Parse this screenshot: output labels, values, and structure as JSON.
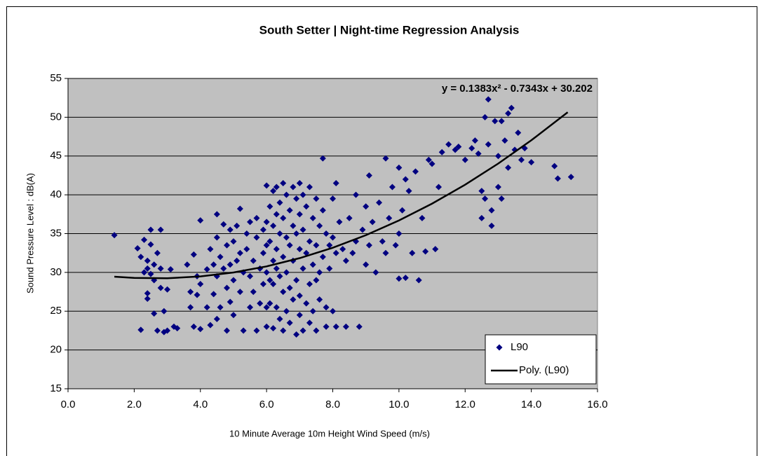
{
  "chart_data": {
    "type": "scatter",
    "title": "South Setter | Night-time Regression Analysis",
    "xlabel": "10 Minute Average 10m Height Wind Speed (m/s)",
    "ylabel": "Sound Pressure Level : dB(A)",
    "annotation": "y = 0.1383x² - 0.7343x + 30.202",
    "xlim": [
      0,
      16
    ],
    "ylim": [
      15,
      55
    ],
    "xticks": [
      {
        "value": 0,
        "label": "0.0"
      },
      {
        "value": 2,
        "label": "2.0"
      },
      {
        "value": 4,
        "label": "4.0"
      },
      {
        "value": 6,
        "label": "6.0"
      },
      {
        "value": 8,
        "label": "8.0"
      },
      {
        "value": 10,
        "label": "10.0"
      },
      {
        "value": 12,
        "label": "12.0"
      },
      {
        "value": 14,
        "label": "14.0"
      },
      {
        "value": 16,
        "label": "16.0"
      }
    ],
    "yticks": [
      15,
      20,
      25,
      30,
      35,
      40,
      45,
      50,
      55
    ],
    "grid": true,
    "legend": "lower right",
    "series": [
      {
        "name": "L90",
        "color": "#000080",
        "x": [
          1.4,
          2.1,
          2.2,
          2.2,
          2.3,
          2.4,
          2.4,
          2.4,
          2.4,
          2.5,
          2.5,
          2.5,
          2.6,
          2.6,
          2.7,
          2.7,
          2.8,
          2.8,
          2.8,
          2.9,
          2.9,
          3.0,
          3.0,
          3.1,
          3.2,
          2.6,
          2.3,
          3.3,
          3.6,
          3.7,
          3.7,
          3.8,
          3.8,
          3.9,
          3.9,
          4.0,
          4.0,
          4.0,
          4.2,
          4.2,
          4.3,
          4.3,
          4.4,
          4.4,
          4.5,
          4.5,
          4.5,
          4.5,
          4.6,
          4.6,
          4.7,
          4.7,
          4.8,
          4.8,
          4.8,
          4.9,
          4.9,
          4.9,
          5.0,
          5.0,
          5.0,
          5.1,
          5.1,
          5.2,
          5.2,
          5.2,
          5.3,
          5.3,
          5.4,
          5.4,
          5.5,
          5.5,
          5.5,
          5.6,
          5.6,
          5.7,
          5.7,
          5.7,
          5.8,
          5.8,
          5.9,
          5.9,
          5.9,
          6.0,
          6.0,
          6.0,
          6.0,
          6.0,
          6.0,
          6.1,
          6.1,
          6.1,
          6.1,
          6.2,
          6.2,
          6.2,
          6.2,
          6.2,
          6.3,
          6.3,
          6.3,
          6.3,
          6.3,
          6.4,
          6.4,
          6.4,
          6.4,
          6.5,
          6.5,
          6.5,
          6.5,
          6.5,
          6.6,
          6.6,
          6.6,
          6.6,
          6.7,
          6.7,
          6.7,
          6.7,
          6.8,
          6.8,
          6.8,
          6.8,
          6.9,
          6.9,
          6.9,
          6.9,
          7.0,
          7.0,
          7.0,
          7.0,
          7.0,
          7.1,
          7.1,
          7.1,
          7.1,
          7.2,
          7.2,
          7.2,
          7.3,
          7.3,
          7.3,
          7.3,
          7.4,
          7.4,
          7.4,
          7.5,
          7.5,
          7.5,
          7.5,
          7.6,
          7.6,
          7.6,
          7.7,
          7.7,
          7.7,
          7.8,
          7.8,
          7.8,
          7.9,
          7.9,
          8.0,
          8.0,
          8.0,
          8.1,
          8.1,
          8.1,
          8.2,
          8.3,
          8.4,
          8.4,
          8.5,
          8.6,
          8.7,
          8.7,
          8.8,
          8.9,
          9.0,
          9.0,
          9.1,
          9.1,
          9.2,
          9.3,
          9.4,
          9.5,
          9.6,
          9.6,
          9.7,
          9.8,
          9.9,
          10.0,
          10.0,
          10.0,
          10.1,
          10.2,
          10.2,
          10.3,
          10.4,
          10.5,
          10.6,
          10.7,
          10.8,
          10.9,
          11.0,
          11.1,
          11.2,
          11.3,
          11.5,
          11.7,
          11.8,
          12.0,
          12.2,
          12.3,
          12.4,
          12.5,
          12.5,
          12.6,
          12.6,
          12.7,
          12.7,
          12.8,
          12.8,
          12.9,
          13.0,
          13.0,
          13.1,
          13.1,
          13.2,
          13.3,
          13.3,
          13.4,
          13.5,
          13.6,
          13.7,
          13.8,
          14.0,
          14.7,
          14.8,
          15.2
        ],
        "values": [
          34.8,
          33.1,
          32.0,
          22.6,
          34.2,
          31.5,
          30.5,
          27.3,
          26.6,
          35.5,
          33.6,
          29.8,
          31.0,
          24.7,
          32.5,
          22.5,
          35.5,
          30.5,
          28.0,
          25.0,
          22.3,
          27.8,
          22.5,
          30.4,
          23.0,
          29.0,
          30.0,
          22.8,
          31.0,
          27.5,
          25.5,
          32.3,
          23.0,
          29.5,
          27.1,
          36.7,
          28.5,
          22.7,
          30.4,
          25.5,
          33.0,
          23.2,
          31.0,
          27.2,
          37.5,
          34.5,
          29.5,
          24.0,
          32.0,
          25.5,
          36.2,
          30.5,
          33.5,
          28.0,
          22.5,
          35.5,
          31.0,
          26.2,
          34.0,
          29.0,
          24.5,
          36.0,
          31.5,
          38.2,
          32.5,
          27.5,
          30.0,
          22.5,
          35.0,
          33.0,
          36.5,
          29.5,
          25.5,
          31.5,
          27.5,
          37.0,
          34.5,
          22.5,
          30.5,
          26.0,
          35.5,
          32.5,
          28.5,
          41.2,
          36.5,
          33.5,
          30.0,
          25.5,
          23.0,
          38.5,
          34.0,
          29.0,
          26.0,
          40.5,
          36.0,
          31.5,
          28.5,
          22.8,
          41.0,
          37.5,
          33.0,
          30.5,
          25.5,
          39.0,
          35.0,
          29.5,
          24.0,
          41.5,
          37.0,
          32.0,
          27.5,
          22.5,
          40.0,
          34.5,
          30.0,
          25.0,
          38.0,
          33.5,
          28.0,
          23.5,
          41.0,
          36.0,
          31.5,
          26.5,
          39.5,
          35.0,
          29.0,
          22.0,
          41.5,
          37.5,
          33.0,
          27.0,
          24.5,
          40.0,
          35.5,
          30.5,
          22.5,
          38.5,
          32.5,
          26.0,
          41.0,
          34.0,
          28.5,
          23.5,
          37.0,
          31.0,
          25.0,
          39.5,
          33.5,
          29.0,
          22.5,
          36.0,
          30.0,
          26.5,
          44.7,
          38.0,
          32.0,
          35.0,
          25.5,
          23.0,
          33.5,
          30.5,
          39.5,
          34.5,
          25.0,
          41.5,
          32.5,
          23.0,
          36.5,
          33.0,
          31.5,
          23.0,
          37.0,
          32.5,
          40.0,
          34.0,
          23.0,
          35.5,
          38.5,
          31.0,
          42.5,
          33.5,
          36.5,
          30.0,
          39.0,
          34.0,
          44.7,
          32.5,
          37.0,
          41.0,
          33.5,
          43.5,
          35.0,
          29.2,
          38.0,
          42.0,
          29.3,
          40.5,
          32.5,
          43.0,
          29.0,
          37.0,
          32.7,
          44.5,
          44.0,
          33.0,
          41.0,
          45.5,
          46.5,
          45.8,
          46.2,
          44.5,
          46.0,
          47.0,
          45.3,
          40.5,
          37.0,
          50.0,
          39.5,
          52.3,
          46.5,
          38.0,
          36.0,
          49.5,
          41.0,
          45.0,
          49.5,
          39.5,
          47.0,
          50.5,
          43.5,
          51.2,
          45.8,
          48.0,
          44.5,
          46.0,
          44.2,
          43.7,
          42.1,
          42.3
        ]
      },
      {
        "name": "Poly. (L90)",
        "type": "line",
        "color": "#000000",
        "x": [
          1.4,
          2,
          3,
          4,
          5,
          6,
          7,
          8,
          9,
          10,
          11,
          12,
          13,
          14,
          15.1
        ],
        "values": [
          29.445,
          29.286,
          29.244,
          29.478,
          29.988,
          30.775,
          31.839,
          33.179,
          34.795,
          36.689,
          38.859,
          41.305,
          44.029,
          47.029,
          50.648
        ]
      }
    ]
  }
}
